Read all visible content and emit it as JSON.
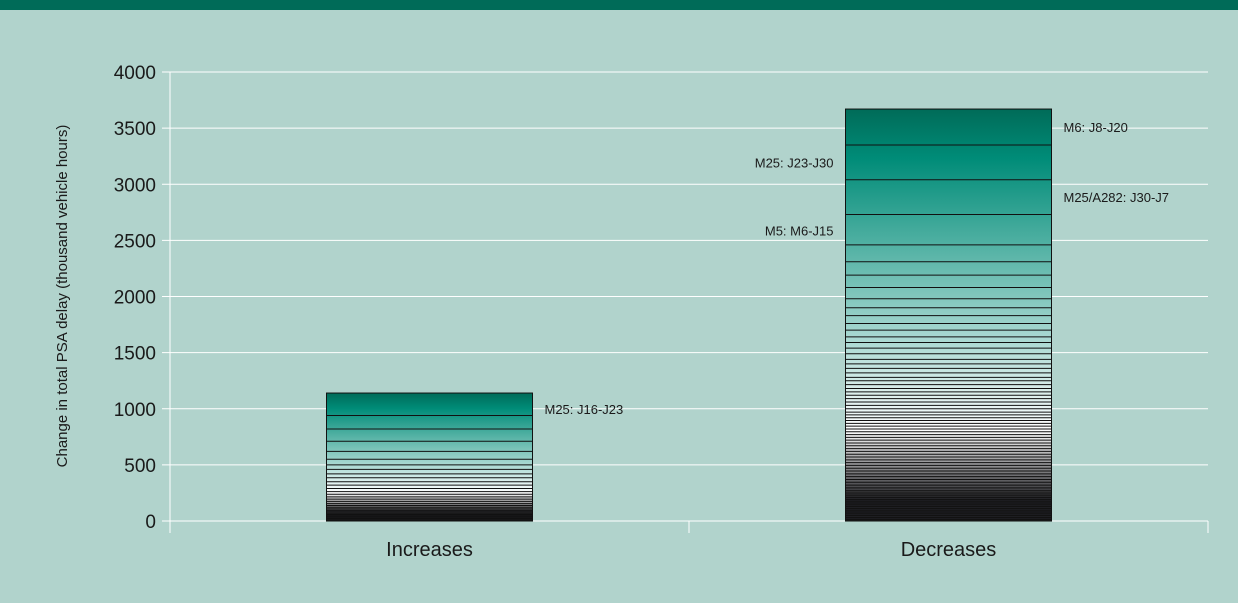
{
  "colors": {
    "background": "#b1d3cc",
    "top_band": "#006b58",
    "bar_top": "#006b58",
    "bar_mid": "#008c78",
    "bar_light": "#ffffff",
    "bar_dark": "#1e1e22",
    "grid": "#ffffff"
  },
  "chart_data": {
    "type": "bar",
    "stacked": true,
    "title": "",
    "xlabel": "",
    "ylabel": "Change in total PSA delay (thousand vehicle hours)",
    "ylim": [
      0,
      4000
    ],
    "yticks": [
      0,
      500,
      1000,
      1500,
      2000,
      2500,
      3000,
      3500,
      4000
    ],
    "ytick_labels": [
      "0",
      "500",
      "1000",
      "1500",
      "2000",
      "2500",
      "3000",
      "3500",
      "4000"
    ],
    "grid": true,
    "categories": [
      "Increases",
      "Decreases"
    ],
    "totals": [
      1140,
      3670
    ],
    "bars": [
      {
        "category": "Increases",
        "segment_tops": [
          1140,
          940,
          820,
          710,
          620,
          550,
          500,
          460,
          420,
          385,
          350,
          320,
          290,
          262,
          238,
          215,
          195,
          175,
          155,
          138,
          122,
          108,
          95,
          82,
          70,
          58,
          46,
          34,
          22,
          10
        ]
      },
      {
        "category": "Decreases",
        "segment_tops": [
          3670,
          3350,
          3040,
          2730,
          2460,
          2310,
          2190,
          2080,
          1980,
          1900,
          1830,
          1760,
          1700,
          1640,
          1590,
          1540,
          1490,
          1440,
          1400,
          1360,
          1320,
          1280,
          1250,
          1215,
          1180,
          1150,
          1120,
          1090,
          1060,
          1030,
          1000,
          970,
          945,
          920,
          895,
          870,
          845,
          820,
          795,
          770,
          745,
          720,
          695,
          670,
          645,
          620,
          595,
          570,
          545,
          520,
          495,
          470,
          445,
          420,
          395,
          370,
          345,
          320,
          295,
          270,
          250,
          230,
          210,
          190,
          170,
          150,
          130,
          110,
          90,
          70,
          50,
          30,
          12
        ]
      }
    ],
    "annotations": [
      {
        "text": "M25: J16-J23",
        "category": "Increases",
        "side": "right",
        "y": 1000
      },
      {
        "text": "M6: J8-J20",
        "category": "Decreases",
        "side": "right",
        "y": 3510
      },
      {
        "text": "M25: J23-J30",
        "category": "Decreases",
        "side": "left",
        "y": 3195
      },
      {
        "text": "M25/A282: J30-J7",
        "category": "Decreases",
        "side": "right",
        "y": 2885
      },
      {
        "text": "M5: M6-J15",
        "category": "Decreases",
        "side": "left",
        "y": 2590
      }
    ]
  }
}
